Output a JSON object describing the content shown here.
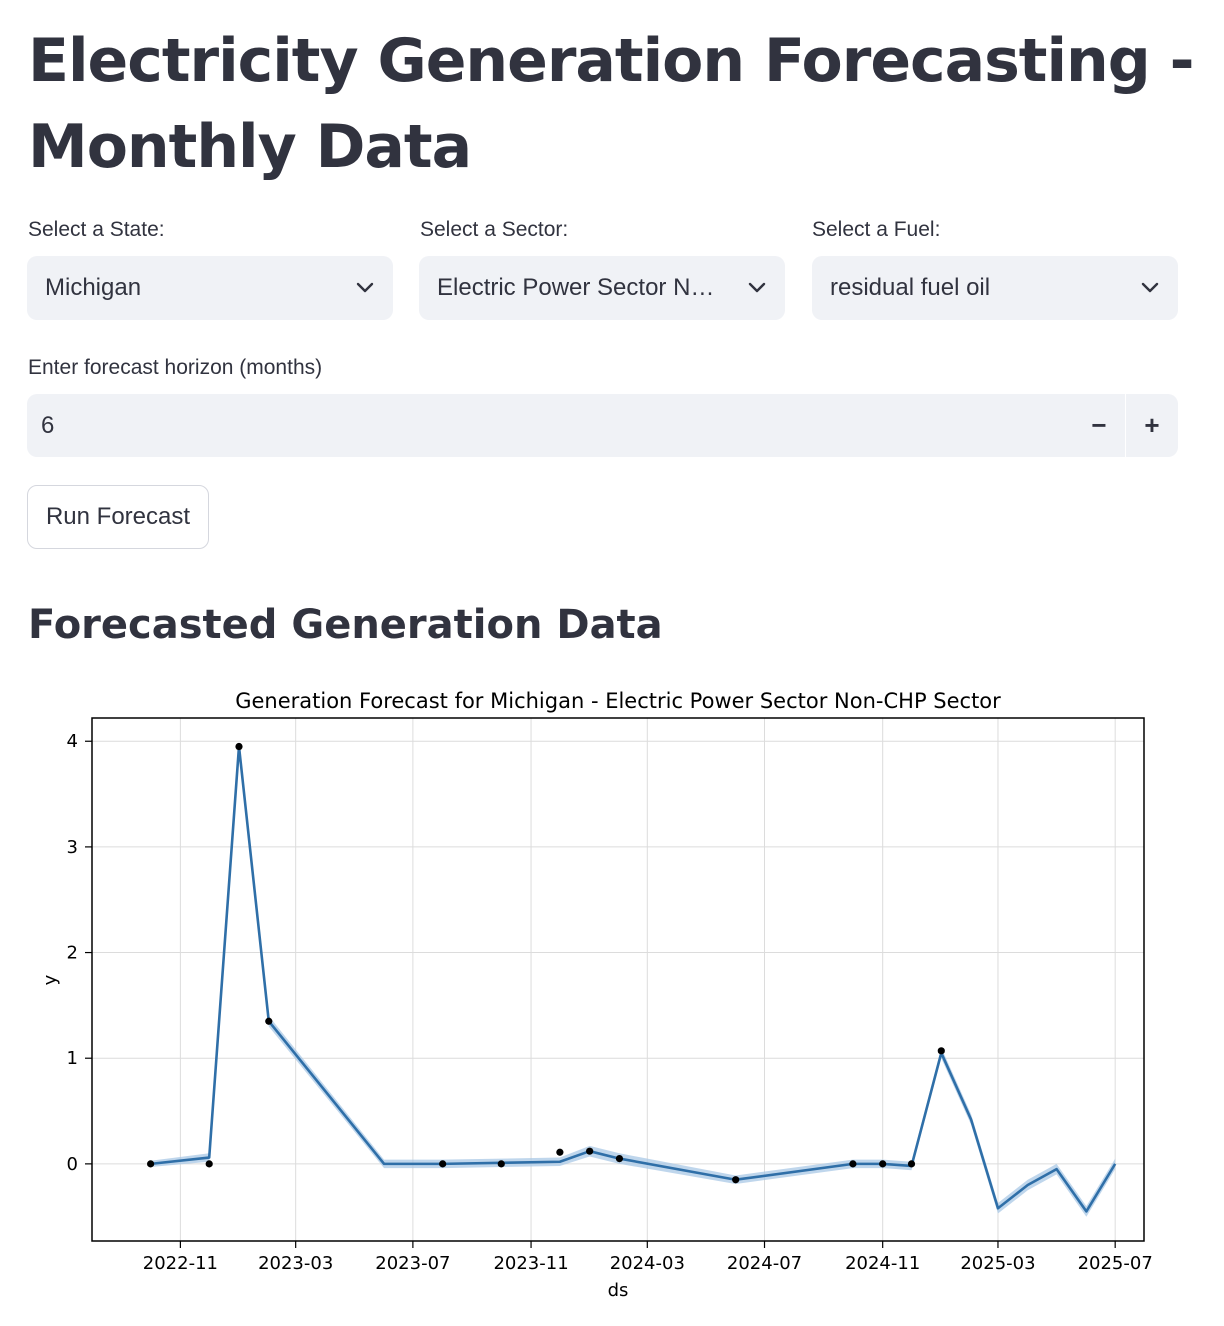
{
  "page": {
    "title": "Electricity Generation Forecasting - Monthly Data",
    "state_label": "Select a State:",
    "state_value": "Michigan",
    "sector_label": "Select a Sector:",
    "sector_value": "Electric Power Sector Non-CHP",
    "fuel_label": "Select a Fuel:",
    "fuel_value": "residual fuel oil",
    "horizon_label": "Enter forecast horizon (months)",
    "horizon_value": "6",
    "minus_symbol": "−",
    "plus_symbol": "+",
    "run_button": "Run Forecast",
    "section_title": "Forecasted Generation Data"
  },
  "icons": {
    "dropdown": "chevron-down-icon"
  },
  "colors": {
    "forecast_line": "#2f6fa8",
    "interval_band": "#a9c8e6",
    "observed_point": "#000000",
    "input_background": "#f0f2f6",
    "text": "#31333f"
  },
  "chart_data": {
    "type": "line",
    "title": "Generation Forecast for Michigan - Electric Power Sector Non-CHP Sector",
    "xlabel": "ds",
    "ylabel": "y",
    "xlim": [
      "2022-08-01",
      "2025-07-31"
    ],
    "ylim": [
      -0.73,
      4.22
    ],
    "grid": true,
    "x_ticks": [
      "2022-11",
      "2023-03",
      "2023-07",
      "2023-11",
      "2024-03",
      "2024-07",
      "2024-11",
      "2025-03",
      "2025-07"
    ],
    "y_ticks": [
      0,
      1,
      2,
      3,
      4
    ],
    "forecast": {
      "x": [
        "2022-10-01",
        "2022-12-01",
        "2023-01-01",
        "2023-02-01",
        "2023-06-01",
        "2023-08-01",
        "2023-12-01",
        "2024-01-01",
        "2024-02-01",
        "2024-06-01",
        "2024-10-01",
        "2024-11-01",
        "2024-12-01",
        "2025-01-01",
        "2025-02-01",
        "2025-03-01",
        "2025-04-01",
        "2025-05-01",
        "2025-06-01",
        "2025-07-01"
      ],
      "yhat": [
        0.0,
        0.06,
        3.95,
        1.35,
        0.0,
        0.0,
        0.02,
        0.12,
        0.05,
        -0.15,
        0.0,
        0.0,
        -0.02,
        1.05,
        0.42,
        -0.42,
        -0.2,
        -0.05,
        -0.45,
        0.0
      ],
      "yhat_lower": [
        -0.03,
        0.02,
        3.9,
        1.3,
        -0.04,
        -0.04,
        -0.02,
        0.07,
        0.0,
        -0.19,
        -0.04,
        -0.04,
        -0.06,
        1.0,
        0.37,
        -0.47,
        -0.25,
        -0.1,
        -0.5,
        -0.05
      ],
      "yhat_upper": [
        0.03,
        0.1,
        4.0,
        1.4,
        0.04,
        0.04,
        0.06,
        0.17,
        0.1,
        -0.11,
        0.04,
        0.04,
        0.02,
        1.1,
        0.47,
        -0.37,
        -0.15,
        0.0,
        -0.4,
        0.05
      ]
    },
    "observed": {
      "x": [
        "2022-10-01",
        "2022-12-01",
        "2023-01-01",
        "2023-02-01",
        "2023-08-01",
        "2023-10-01",
        "2023-12-01",
        "2024-01-01",
        "2024-02-01",
        "2024-06-01",
        "2024-10-01",
        "2024-11-01",
        "2024-12-01",
        "2025-01-01"
      ],
      "y": [
        0.0,
        0.0,
        3.95,
        1.35,
        0.0,
        0.0,
        0.11,
        0.12,
        0.05,
        -0.15,
        0.0,
        0.0,
        0.0,
        1.07
      ]
    }
  }
}
